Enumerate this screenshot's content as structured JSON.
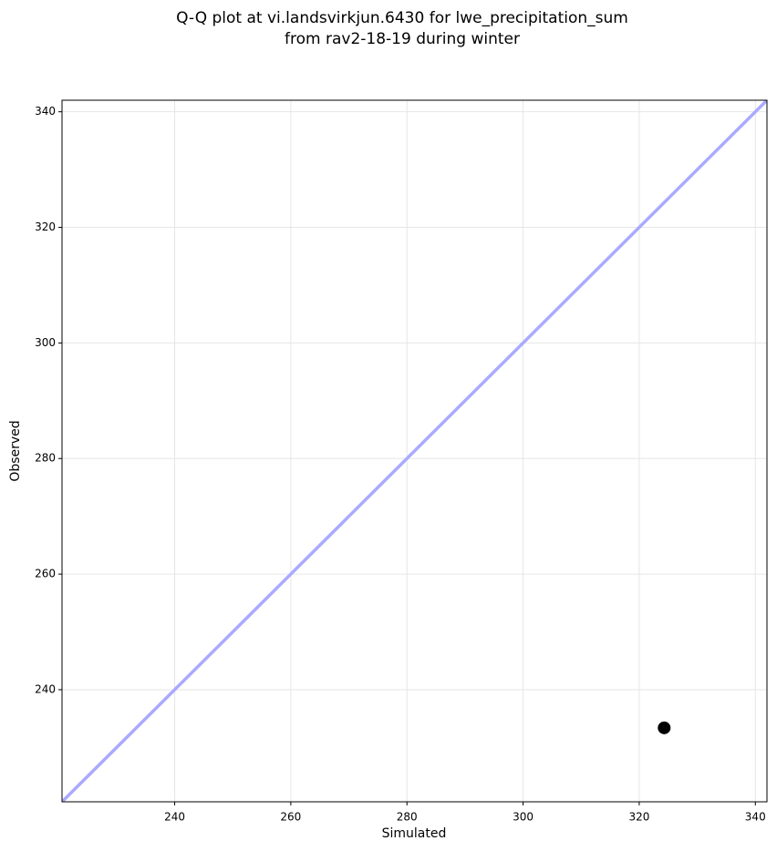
{
  "chart_data": {
    "type": "scatter",
    "title": [
      "Q-Q plot at vi.landsvirkjun.6430 for lwe_precipitation_sum",
      "from rav2-18-19 during winter"
    ],
    "x_label": "Simulated",
    "y_label": "Observed",
    "x": [
      324.3
    ],
    "values": [
      233.4
    ],
    "color": "#000000",
    "reference_line": {
      "color": "#aaaaff"
    },
    "xlim": [
      220.6,
      342
    ],
    "ylim": [
      220.6,
      342
    ],
    "xticks": [
      240,
      260,
      280,
      300,
      320,
      340
    ],
    "yticks": [
      240,
      260,
      280,
      300,
      320,
      340
    ],
    "grid": true
  }
}
